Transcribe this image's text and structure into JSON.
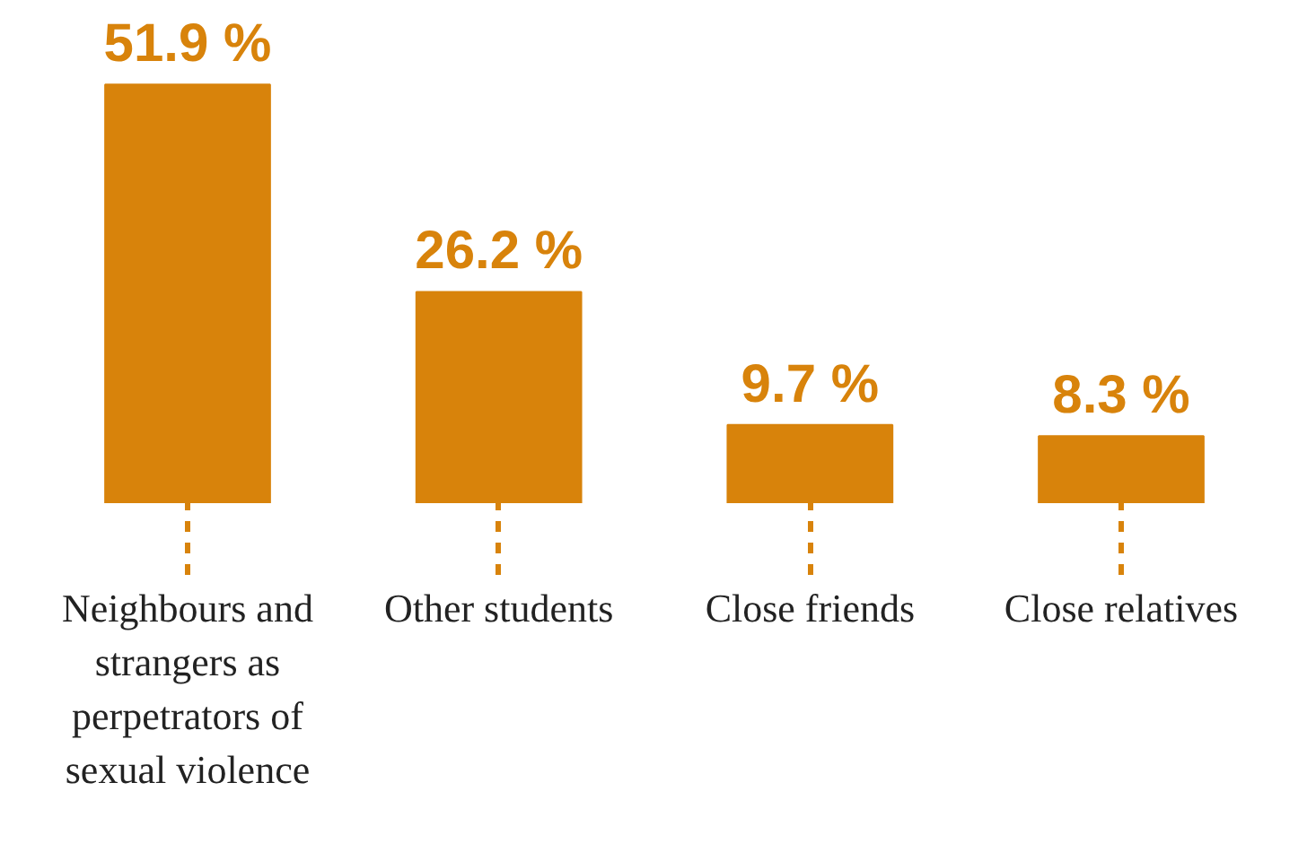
{
  "chart_data": {
    "type": "bar",
    "categories": [
      "Neighbours and strangers as perpetrators of sexual violence",
      "Other students",
      "Close friends",
      "Close relatives"
    ],
    "values": [
      51.9,
      26.2,
      9.7,
      8.3
    ],
    "value_labels": [
      "51.9 %",
      "26.2 %",
      "9.7 %",
      "8.3 %"
    ],
    "color": "#d8830b"
  }
}
